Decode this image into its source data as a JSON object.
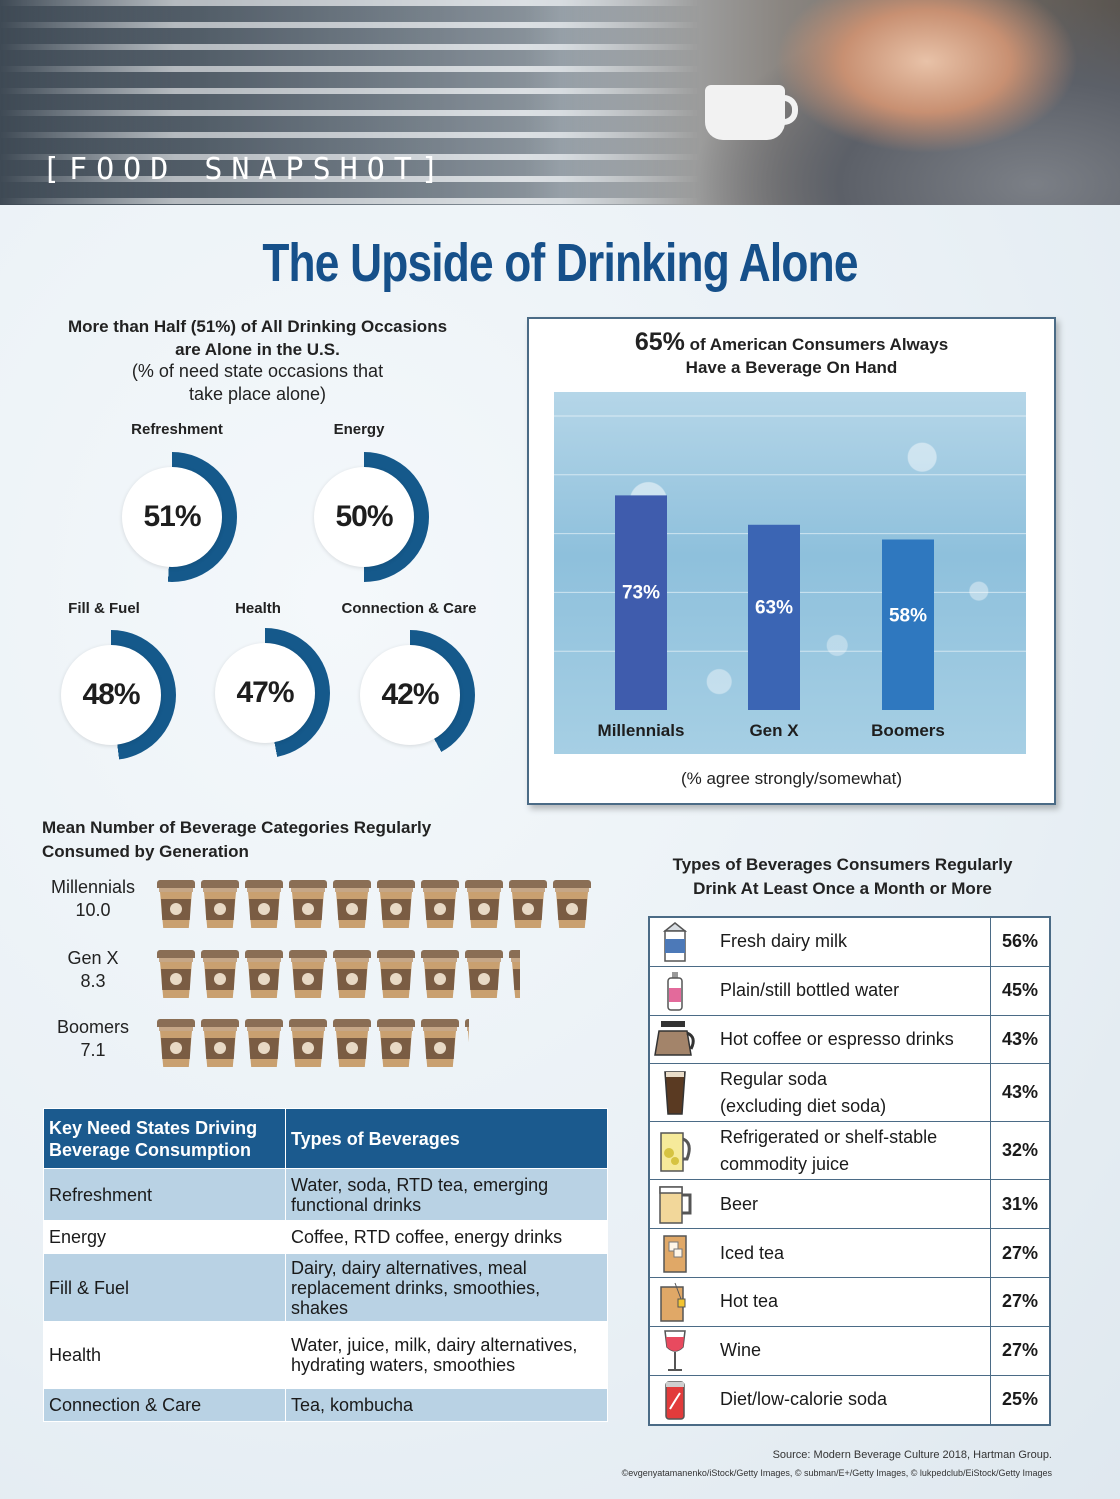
{
  "header": {
    "label": "[FOOD SNAPSHOT]"
  },
  "title": "The Upside of Drinking Alone",
  "donuts": {
    "heading_line1": "More than Half (51%) of All Drinking Occasions",
    "heading_line2": "are Alone in the U.S.",
    "sub_line1": "(% of need state occasions that",
    "sub_line2": "take place alone)",
    "accent_color": "#15598b",
    "items": [
      {
        "label": "Refreshment",
        "value": 51,
        "text": "51%"
      },
      {
        "label": "Energy",
        "value": 50,
        "text": "50%"
      },
      {
        "label": "Fill & Fuel",
        "value": 48,
        "text": "48%"
      },
      {
        "label": "Health",
        "value": 47,
        "text": "47%"
      },
      {
        "label": "Connection & Care",
        "value": 42,
        "text": "42%"
      }
    ]
  },
  "bar_box": {
    "title_pct": "65%",
    "title_rest": " of American Consumers Always",
    "title_line2": "Have a Beverage On Hand",
    "footnote": "(% agree strongly/somewhat)"
  },
  "chart_data": [
    {
      "type": "bar",
      "title": "65% of American Consumers Always Have a Beverage On Hand",
      "categories": [
        "Millennials",
        "Gen X",
        "Boomers"
      ],
      "values": [
        73,
        63,
        58
      ],
      "value_labels": [
        "73%",
        "63%",
        "58%"
      ],
      "colors": [
        "#3f5cad",
        "#3b65b4",
        "#2f78bf"
      ],
      "ylim": [
        0,
        100
      ],
      "grid": true,
      "xlabel": "",
      "ylabel": "",
      "footnote": "(% agree strongly/somewhat)"
    },
    {
      "type": "bar",
      "title": "Mean Number of Beverage Categories Regularly Consumed by Generation",
      "categories": [
        "Millennials",
        "Gen X",
        "Boomers"
      ],
      "values": [
        10.0,
        8.3,
        7.1
      ],
      "value_labels": [
        "10.0",
        "8.3",
        "7.1"
      ]
    },
    {
      "type": "table",
      "title": "Types of Beverages Consumers Regularly Drink At Least Once a Month or More",
      "categories": [
        "Fresh dairy milk",
        "Plain/still bottled water",
        "Hot coffee or espresso drinks",
        "Regular soda (excluding diet soda)",
        "Refrigerated or shelf-stable commodity juice",
        "Beer",
        "Iced tea",
        "Hot tea",
        "Wine",
        "Diet/low-calorie soda"
      ],
      "values": [
        56,
        45,
        43,
        43,
        32,
        31,
        27,
        27,
        27,
        25
      ]
    }
  ],
  "cups": {
    "heading_line1": "Mean Number of Beverage Categories Regularly",
    "heading_line2": "Consumed by Generation",
    "rows": [
      {
        "name": "Millennials",
        "value_text": "10.0",
        "value": 10.0
      },
      {
        "name": "Gen X",
        "value_text": "8.3",
        "value": 8.3
      },
      {
        "name": "Boomers",
        "value_text": "7.1",
        "value": 7.1
      }
    ]
  },
  "need_table": {
    "headers": [
      "Key Need States Driving Beverage Consumption",
      "Types of Beverages"
    ],
    "rows": [
      [
        "Refreshment",
        "Water, soda, RTD tea, emerging functional drinks"
      ],
      [
        "Energy",
        "Coffee, RTD coffee, energy drinks"
      ],
      [
        "Fill & Fuel",
        "Dairy, dairy alternatives, meal replacement drinks, smoothies, shakes"
      ],
      [
        "Health",
        "Water, juice, milk, dairy alternatives, hydrating waters, smoothies"
      ],
      [
        "Connection & Care",
        "Tea, kombucha"
      ]
    ]
  },
  "types_table": {
    "heading_line1": "Types of Beverages Consumers Regularly",
    "heading_line2": "Drink At Least Once a Month or More",
    "rows": [
      {
        "icon": "milk-carton-icon",
        "line1": "Fresh dairy milk",
        "line2": "",
        "pct": "56%"
      },
      {
        "icon": "water-bottle-icon",
        "line1": "Plain/still bottled water",
        "line2": "",
        "pct": "45%"
      },
      {
        "icon": "coffee-pot-icon",
        "line1": "Hot coffee or espresso drinks",
        "line2": "",
        "pct": "43%"
      },
      {
        "icon": "soda-glass-icon",
        "line1": "Regular soda",
        "line2": "(excluding diet soda)",
        "pct": "43%"
      },
      {
        "icon": "juice-pitcher-icon",
        "line1": "Refrigerated or shelf-stable",
        "line2": "commodity juice",
        "pct": "32%"
      },
      {
        "icon": "beer-mug-icon",
        "line1": "Beer",
        "line2": "",
        "pct": "31%"
      },
      {
        "icon": "iced-tea-icon",
        "line1": "Iced tea",
        "line2": "",
        "pct": "27%"
      },
      {
        "icon": "hot-tea-icon",
        "line1": "Hot tea",
        "line2": "",
        "pct": "27%"
      },
      {
        "icon": "wine-glass-icon",
        "line1": "Wine",
        "line2": "",
        "pct": "27%"
      },
      {
        "icon": "soda-can-icon",
        "line1": "Diet/low-calorie soda",
        "line2": "",
        "pct": "25%"
      }
    ]
  },
  "footer": {
    "source": "Source: Modern Beverage Culture 2018, Hartman Group.",
    "credits": "©evgenyatamanenko/iStock/Getty Images, © subman/E+/Getty Images, © lukpedclub/EiStock/Getty Images"
  }
}
